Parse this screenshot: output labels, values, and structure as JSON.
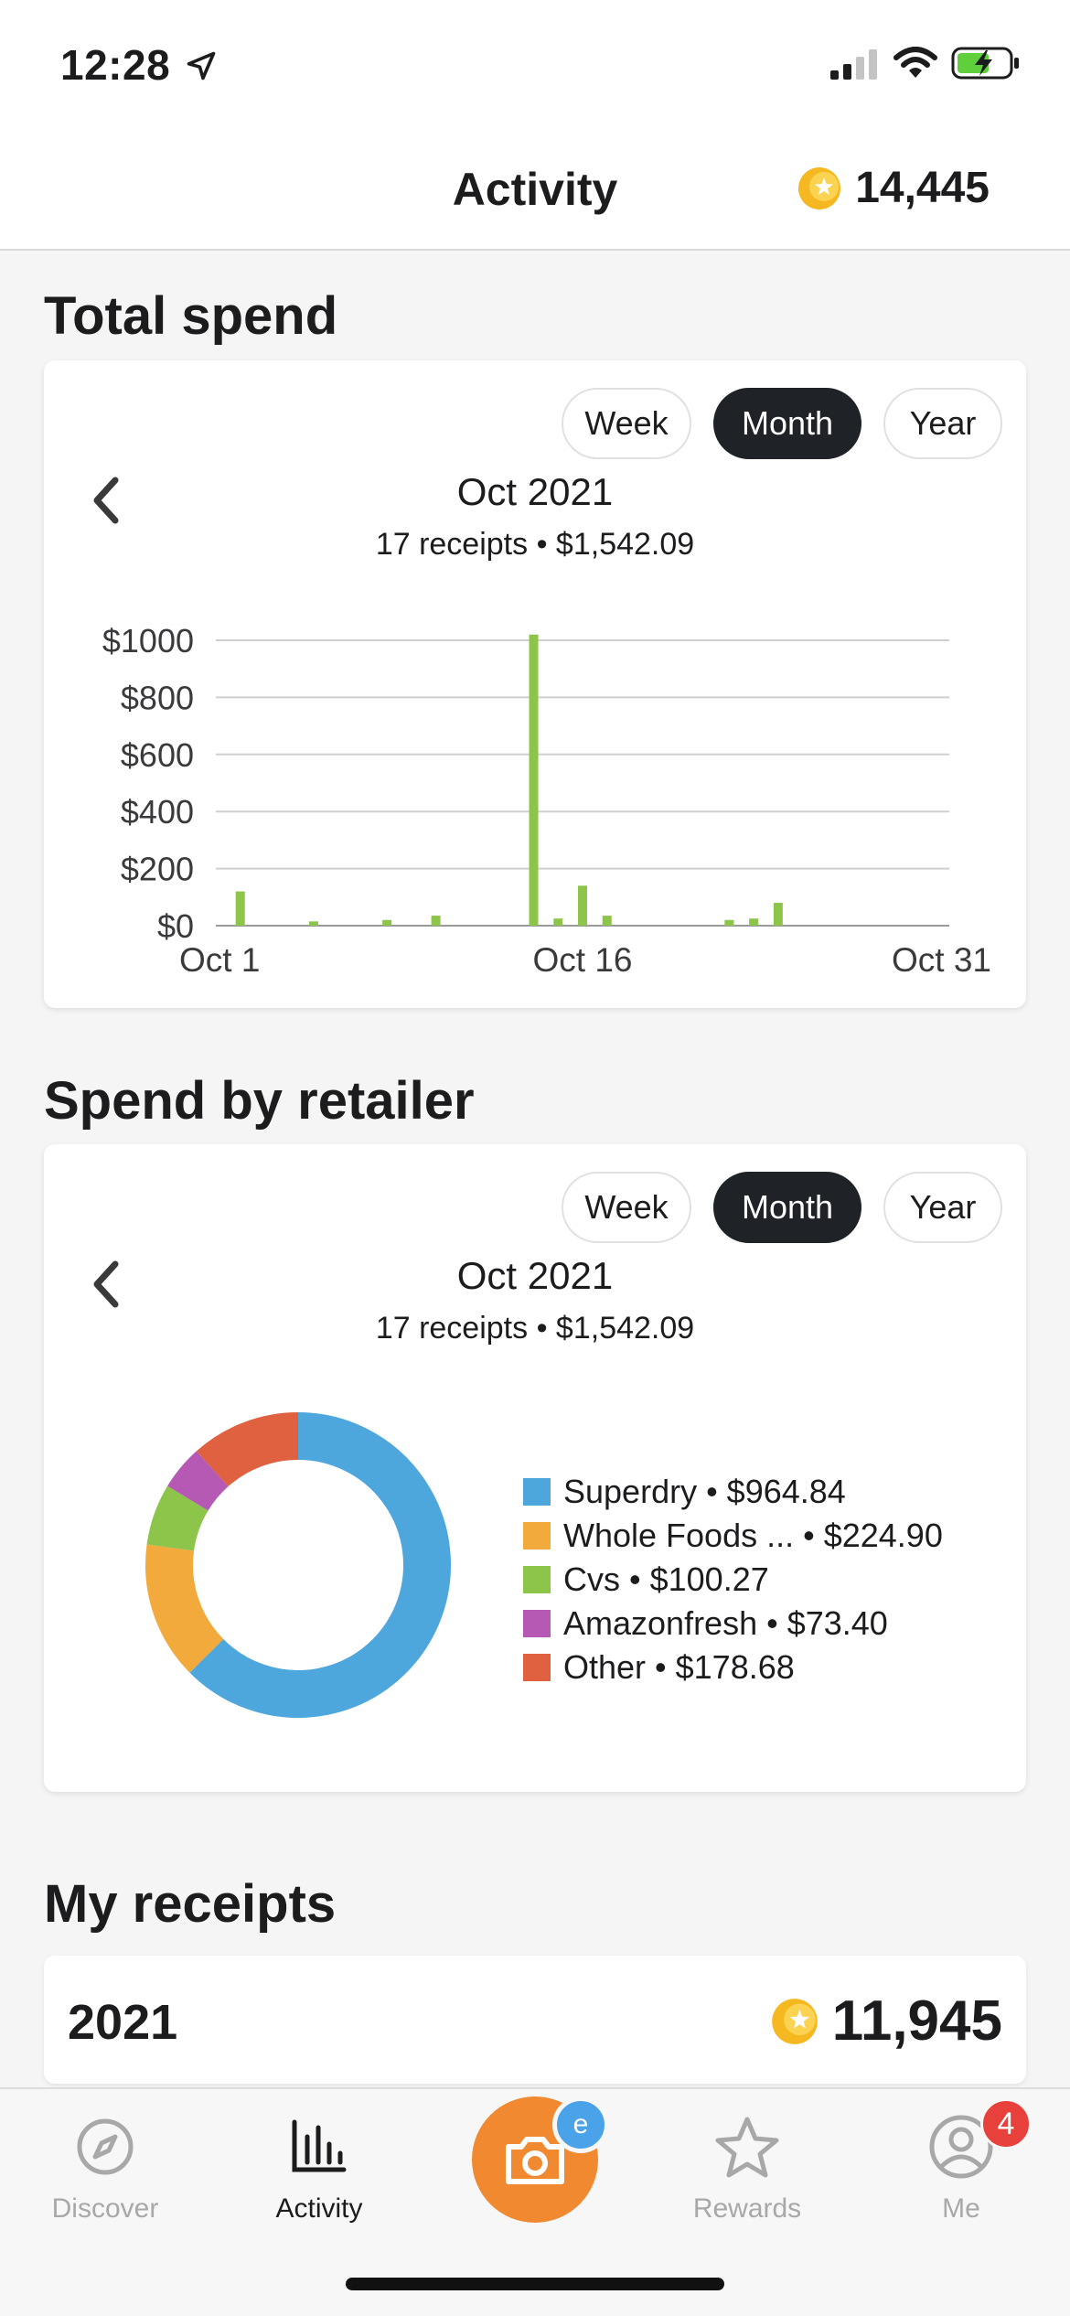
{
  "status": {
    "time": "12:28",
    "icons": [
      "location-arrow-icon",
      "cellular-signal-icon",
      "wifi-icon",
      "battery-charging-icon"
    ]
  },
  "header": {
    "title": "Activity",
    "points": "14,445",
    "points_icon": "points-coin-icon"
  },
  "range_options": [
    "Week",
    "Month",
    "Year"
  ],
  "selected_range": "Month",
  "total_spend": {
    "section_title": "Total spend",
    "range": {
      "week": "Week",
      "month": "Month",
      "year": "Year"
    },
    "period": "Oct 2021",
    "summary": "17 receipts • $1,542.09"
  },
  "spend_by_retailer": {
    "section_title": "Spend by retailer",
    "range": {
      "week": "Week",
      "month": "Month",
      "year": "Year"
    },
    "period": "Oct 2021",
    "summary": "17 receipts • $1,542.09",
    "legend": [
      {
        "label": "Superdry • $964.84",
        "color": "#4da6dc"
      },
      {
        "label": "Whole Foods ... • $224.90",
        "color": "#f2aa3c"
      },
      {
        "label": "Cvs • $100.27",
        "color": "#8dc44a"
      },
      {
        "label": "Amazonfresh • $73.40",
        "color": "#b659b4"
      },
      {
        "label": "Other • $178.68",
        "color": "#e0613f"
      }
    ]
  },
  "my_receipts": {
    "section_title": "My receipts",
    "year": "2021",
    "points": "11,945"
  },
  "tabbar": {
    "discover": "Discover",
    "activity": "Activity",
    "rewards": "Rewards",
    "me": "Me",
    "me_badge": "4",
    "camera_badge": "e"
  },
  "colors": {
    "accent_orange": "#f0892f",
    "bar_green": "#8dc44a",
    "badge_red": "#e8403a",
    "badge_blue": "#4aa3e8",
    "coin_gold": "#f5b820"
  },
  "chart_data": [
    {
      "type": "bar",
      "x_tick_labels": [
        "Oct 1",
        "Oct 16",
        "Oct 31"
      ],
      "x": [
        2,
        5,
        8,
        10,
        14,
        15,
        16,
        17,
        22,
        23,
        24
      ],
      "values": [
        120,
        15,
        20,
        35,
        1020,
        25,
        140,
        35,
        20,
        25,
        80
      ],
      "y_tick_labels": [
        "$0",
        "$200",
        "$400",
        "$600",
        "$800",
        "$1000"
      ],
      "ylim": [
        0,
        1000
      ],
      "xlim": [
        1,
        31
      ],
      "grid": true,
      "bar_color": "#8dc44a"
    },
    {
      "type": "pie",
      "style": "donut",
      "labels": [
        "Superdry",
        "Whole Foods ...",
        "Cvs",
        "Amazonfresh",
        "Other"
      ],
      "values": [
        964.84,
        224.9,
        100.27,
        73.4,
        178.68
      ],
      "colors": [
        "#4da6dc",
        "#f2aa3c",
        "#8dc44a",
        "#b659b4",
        "#e0613f"
      ]
    }
  ]
}
